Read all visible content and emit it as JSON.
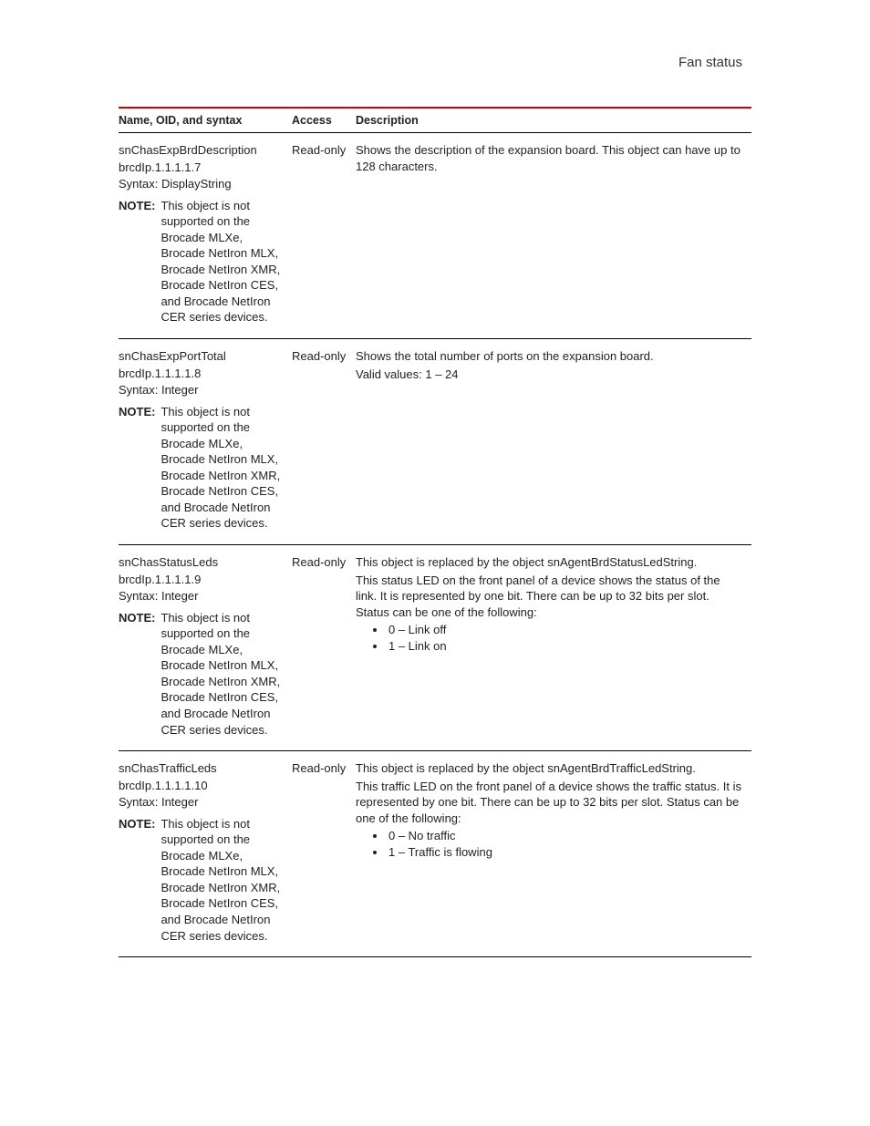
{
  "page_header": "Fan status",
  "columns": {
    "name": "Name, OID, and syntax",
    "access": "Access",
    "description": "Description"
  },
  "note_label": "NOTE:",
  "shared_note_text": "This object is not supported on the Brocade MLXe, Brocade NetIron MLX, Brocade NetIron XMR, Brocade NetIron CES, and Brocade NetIron CER series devices.",
  "rows": [
    {
      "name": "snChasExpBrdDescription",
      "oid": "brcdIp.1.1.1.1.7",
      "syntax": "Syntax: DisplayString",
      "access": "Read-only",
      "description_paras": [
        "Shows the description of the expansion board. This object can have up to 128 characters."
      ],
      "bullets": []
    },
    {
      "name": "snChasExpPortTotal",
      "oid": "brcdIp.1.1.1.1.8",
      "syntax": "Syntax: Integer",
      "access": "Read-only",
      "description_paras": [
        "Shows the total number of ports on the expansion board.",
        "Valid values: 1 – 24"
      ],
      "bullets": []
    },
    {
      "name": "snChasStatusLeds",
      "oid": "brcdIp.1.1.1.1.9",
      "syntax": "Syntax: Integer",
      "access": "Read-only",
      "description_paras": [
        "This object is replaced by the object snAgentBrdStatusLedString.",
        "This status LED on the front panel of a device shows the status of the link. It is represented by one bit. There can be up to 32 bits per slot. Status can be one of the following:"
      ],
      "bullets": [
        "0 – Link off",
        "1 – Link on"
      ]
    },
    {
      "name": "snChasTrafficLeds",
      "oid": "brcdIp.1.1.1.1.10",
      "syntax": "Syntax: Integer",
      "access": "Read-only",
      "description_paras": [
        "This object is replaced by the object snAgentBrdTrafficLedString.",
        "This traffic LED on the front panel of a device shows the traffic status. It is represented by one bit. There can be up to 32 bits per slot. Status can be one of the following:"
      ],
      "bullets": [
        "0 – No traffic",
        "1 – Traffic is flowing"
      ]
    }
  ]
}
